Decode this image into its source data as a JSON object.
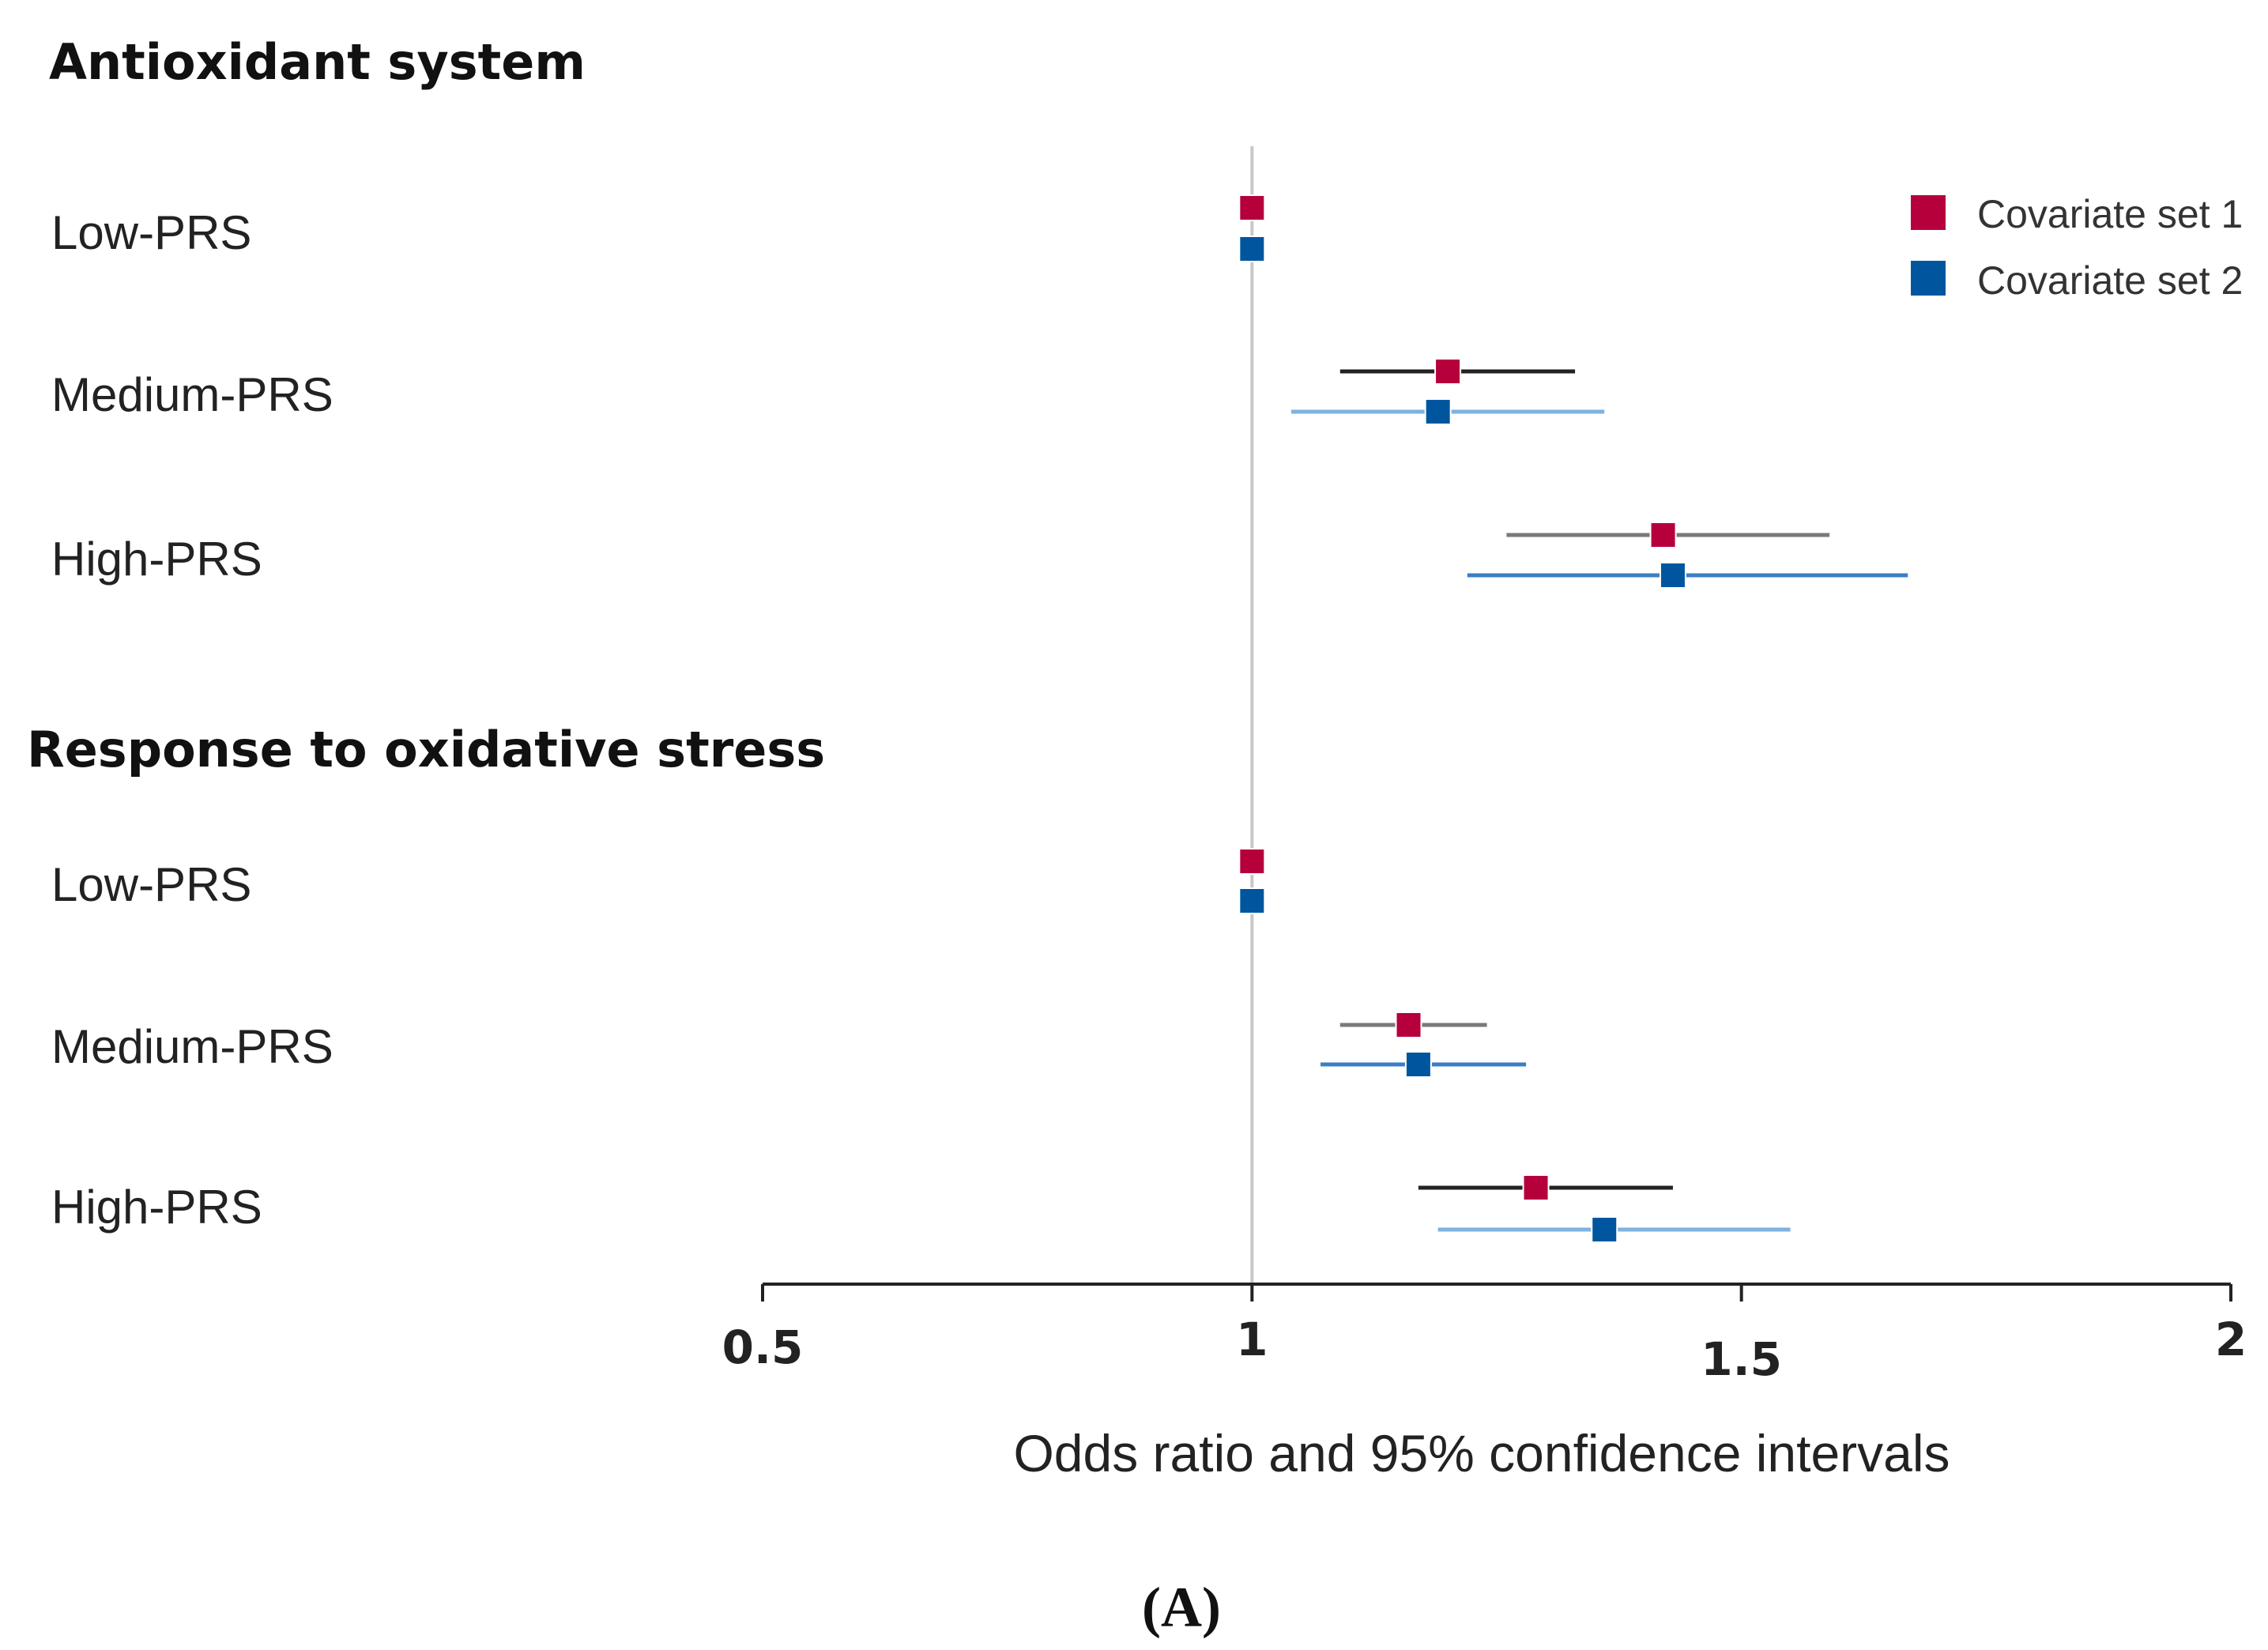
{
  "chart_data": {
    "type": "forest",
    "xlabel": "Odds ratio and 95% confidence intervals",
    "xlim": [
      0.5,
      2
    ],
    "x_ticks": [
      "0.5",
      "1",
      "1.5",
      "2"
    ],
    "reference_line": 1,
    "legend": {
      "position": "top-right",
      "entries": [
        {
          "name": "Covariate set 1",
          "color": "#b5003c"
        },
        {
          "name": "Covariate set 2",
          "color": "#00569e"
        }
      ]
    },
    "ci_colors": {
      "groups": [
        [
          "#222222",
          "#7fb2e0"
        ],
        [
          "#7a7a7a",
          "#3a7fc4"
        ],
        [
          "#7a7a7a",
          "#3a7fc4"
        ],
        [
          "#222222",
          "#7fb2e0"
        ]
      ]
    },
    "groups": [
      {
        "title": "Antioxidant system",
        "rows": [
          {
            "label": "Low-PRS",
            "series": [
              {
                "or": 1.0,
                "lo": null,
                "hi": null
              },
              {
                "or": 1.0,
                "lo": null,
                "hi": null
              }
            ]
          },
          {
            "label": "Medium-PRS",
            "series": [
              {
                "or": 1.2,
                "lo": 1.09,
                "hi": 1.33
              },
              {
                "or": 1.19,
                "lo": 1.04,
                "hi": 1.36
              }
            ]
          },
          {
            "label": "High-PRS",
            "series": [
              {
                "or": 1.42,
                "lo": 1.26,
                "hi": 1.59
              },
              {
                "or": 1.43,
                "lo": 1.22,
                "hi": 1.67
              }
            ]
          }
        ]
      },
      {
        "title": "Response to oxidative stress",
        "rows": [
          {
            "label": "Low-PRS",
            "series": [
              {
                "or": 1.0,
                "lo": null,
                "hi": null
              },
              {
                "or": 1.0,
                "lo": null,
                "hi": null
              }
            ]
          },
          {
            "label": "Medium-PRS",
            "series": [
              {
                "or": 1.16,
                "lo": 1.09,
                "hi": 1.24
              },
              {
                "or": 1.17,
                "lo": 1.07,
                "hi": 1.28
              }
            ]
          },
          {
            "label": "High-PRS",
            "series": [
              {
                "or": 1.29,
                "lo": 1.17,
                "hi": 1.43
              },
              {
                "or": 1.36,
                "lo": 1.19,
                "hi": 1.55
              }
            ]
          }
        ]
      }
    ]
  },
  "caption": "(A)"
}
